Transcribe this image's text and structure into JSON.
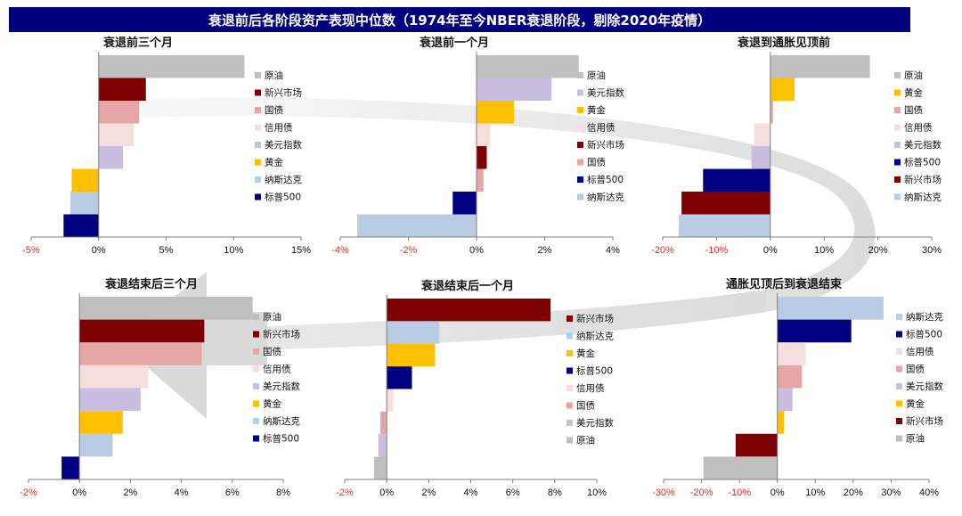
{
  "header": {
    "title": "衰退前后各阶段资产表现中位数（1974年至今NBER衰退阶段，剔除2020年疫情）"
  },
  "colors": {
    "原油": "#bfbfbf",
    "新兴市场": "#7f0000",
    "国债": "#e6a6a6",
    "信用债": "#f7dede",
    "美元指数": "#c9bedf",
    "黄金": "#ffc000",
    "纳斯达克": "#b8cce4",
    "标普500": "#000080",
    "arrow": "#d9d9d9",
    "negative_tick": "#e8281e"
  },
  "chart_data": [
    {
      "type": "bar",
      "orientation": "horizontal",
      "title": "衰退前三个月",
      "categories": [
        "原油",
        "新兴市场",
        "国债",
        "信用债",
        "美元指数",
        "黄金",
        "纳斯达克",
        "标普500"
      ],
      "values": [
        10.8,
        3.5,
        3.0,
        2.6,
        1.8,
        -2.0,
        -2.1,
        -2.6
      ],
      "xlim": [
        -5,
        15
      ],
      "xticks": [
        "-5%",
        "0%",
        "5%",
        "10%",
        "15%"
      ],
      "tick_values": [
        -5,
        0,
        5,
        10,
        15
      ]
    },
    {
      "type": "bar",
      "orientation": "horizontal",
      "title": "衰退前一个月",
      "categories": [
        "原油",
        "美元指数",
        "黄金",
        "信用债",
        "新兴市场",
        "国债",
        "标普500",
        "纳斯达克"
      ],
      "values": [
        3.0,
        2.2,
        1.1,
        0.4,
        0.3,
        0.2,
        -0.7,
        -3.5
      ],
      "xlim": [
        -4,
        4
      ],
      "xticks": [
        "-4%",
        "-2%",
        "0%",
        "2%",
        "4%"
      ],
      "tick_values": [
        -4,
        -2,
        0,
        2,
        4
      ]
    },
    {
      "type": "bar",
      "orientation": "horizontal",
      "title": "衰退到通胀见顶前",
      "categories": [
        "原油",
        "黄金",
        "国债",
        "信用债",
        "美元指数",
        "标普500",
        "新兴市场",
        "纳斯达克"
      ],
      "values": [
        18.5,
        4.5,
        0.5,
        -3.0,
        -3.5,
        -12.5,
        -16.5,
        -17.0
      ],
      "xlim": [
        -20,
        30
      ],
      "xticks": [
        "-20%",
        "-10%",
        "0%",
        "10%",
        "20%",
        "30%"
      ],
      "tick_values": [
        -20,
        -10,
        0,
        10,
        20,
        30
      ]
    },
    {
      "type": "bar",
      "orientation": "horizontal",
      "title": "衰退结束后三个月",
      "categories": [
        "原油",
        "新兴市场",
        "国债",
        "信用债",
        "美元指数",
        "黄金",
        "纳斯达克",
        "标普500"
      ],
      "values": [
        6.8,
        4.9,
        4.8,
        2.7,
        2.4,
        1.7,
        1.3,
        -0.7
      ],
      "xlim": [
        -2,
        8
      ],
      "xticks": [
        "-2%",
        "0%",
        "2%",
        "4%",
        "6%",
        "8%"
      ],
      "tick_values": [
        -2,
        0,
        2,
        4,
        6,
        8
      ]
    },
    {
      "type": "bar",
      "orientation": "horizontal",
      "title": "衰退结束后一个月",
      "categories": [
        "新兴市场",
        "纳斯达克",
        "黄金",
        "标普500",
        "信用债",
        "国债",
        "美元指数",
        "原油"
      ],
      "values": [
        7.8,
        2.5,
        2.3,
        1.2,
        0.3,
        -0.3,
        -0.4,
        -0.6
      ],
      "xlim": [
        -2,
        10
      ],
      "xticks": [
        "-2%",
        "0%",
        "2%",
        "4%",
        "6%",
        "8%",
        "10%"
      ],
      "tick_values": [
        -2,
        0,
        2,
        4,
        6,
        8,
        10
      ]
    },
    {
      "type": "bar",
      "orientation": "horizontal",
      "title": "通胀见顶后到衰退结束",
      "categories": [
        "纳斯达克",
        "标普500",
        "信用债",
        "国债",
        "美元指数",
        "黄金",
        "新兴市场",
        "原油"
      ],
      "values": [
        28.0,
        19.5,
        7.5,
        6.5,
        4.0,
        1.8,
        -11.0,
        -19.5
      ],
      "xlim": [
        -30,
        40
      ],
      "xticks": [
        "-30%",
        "-20%",
        "-10%",
        "0%",
        "10%",
        "20%",
        "30%",
        "40%"
      ],
      "tick_values": [
        -30,
        -20,
        -10,
        0,
        10,
        20,
        30,
        40
      ]
    }
  ]
}
